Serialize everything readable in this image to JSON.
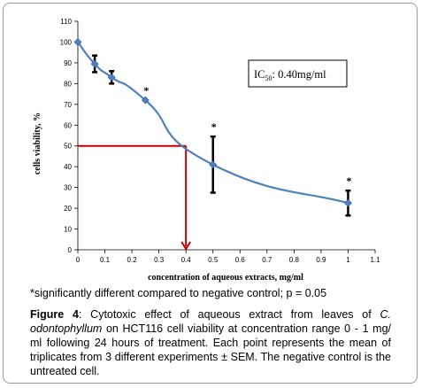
{
  "chart_data": {
    "type": "line",
    "xlabel": "concentration of aqueous extracts, mg/ml",
    "ylabel": "cells viability, %",
    "xlim": [
      0,
      1.1
    ],
    "ylim": [
      0,
      110
    ],
    "x_ticks": [
      0,
      0.1,
      0.2,
      0.3,
      0.4,
      0.5,
      0.6,
      0.7,
      0.8,
      0.9,
      1,
      1.1
    ],
    "x_tick_labels": [
      "0",
      "0.1",
      "0.2",
      "0.3",
      "0.4",
      "0.5",
      "0.6",
      "0.7",
      "0.8",
      "0.9",
      "1",
      "1.1"
    ],
    "y_ticks": [
      0,
      10,
      20,
      30,
      40,
      50,
      60,
      70,
      80,
      90,
      100,
      110
    ],
    "y_tick_labels": [
      "0",
      "10",
      "20",
      "30",
      "40",
      "50",
      "60",
      "70",
      "80",
      "90",
      "100",
      "110"
    ],
    "grid": false,
    "series": [
      {
        "x": [
          0,
          0.0625,
          0.125,
          0.25,
          0.5,
          1
        ],
        "y": [
          100,
          89.5,
          83,
          72,
          41,
          22.5
        ],
        "error": [
          0,
          4,
          3,
          0,
          13.5,
          6
        ],
        "significant": [
          false,
          false,
          false,
          true,
          true,
          true
        ],
        "color": "#4f81bd"
      }
    ],
    "marker_text": "*",
    "ic50_x": 0.4,
    "ic50_y": 50,
    "ic50_line_color": "#c00000",
    "annotation": {
      "prefix": "IC",
      "subscript": "50",
      "value": ": 0.40mg/ml"
    }
  },
  "note": "*significantly different compared to negative control; p = 0.05",
  "caption": {
    "figure_label": "Figure 4",
    "text_1": ": Cytotoxic effect of aqueous extract from leaves of ",
    "species": "C. odontophyllum",
    "text_2": " on HCT116 cell viability at concentration range 0 - 1 mg/ ml following 24 hours of treatment. Each point represents the mean of triplicates from 3 different experiments ± SEM. The negative control is the untreated cell."
  }
}
